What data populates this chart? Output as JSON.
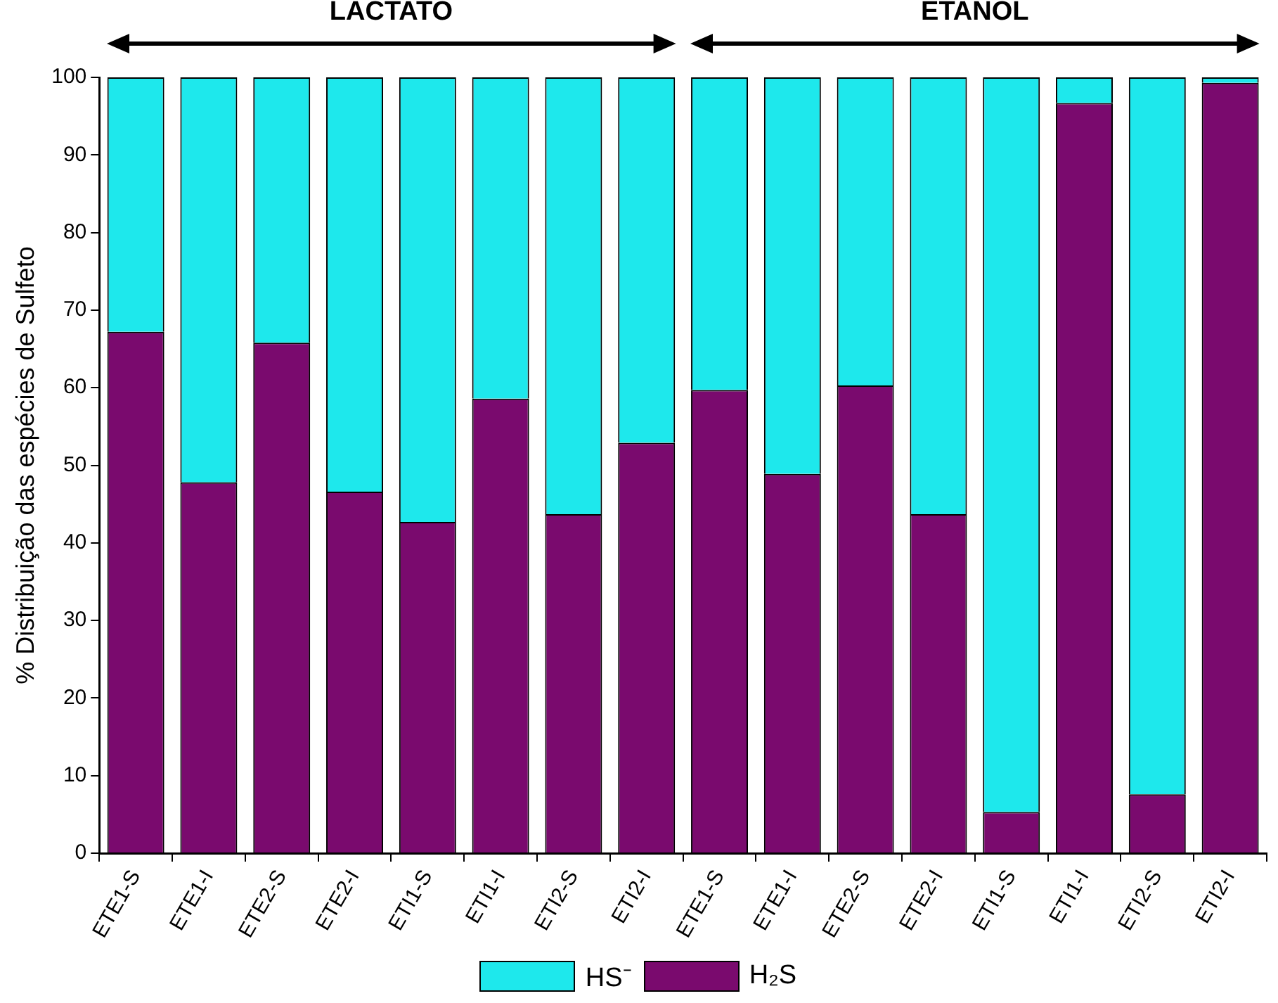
{
  "chart_data": {
    "type": "bar",
    "stacked": true,
    "ylabel": "% Distribuição das espécies de Sulfeto",
    "categories": [
      "ETE1-S",
      "ETE1-I",
      "ETE2-S",
      "ETE2-I",
      "ETI1-S",
      "ETI1-I",
      "ETI2-S",
      "ETI2-I",
      "ETE1-S",
      "ETE1-I",
      "ETE2-S",
      "ETE2-I",
      "ETI1-S",
      "ETI1-I",
      "ETI2-S",
      "ETI2-I"
    ],
    "series": [
      {
        "name": "H₂S",
        "color": "#7a0a6e",
        "values": [
          67.2,
          47.8,
          65.8,
          46.6,
          42.7,
          58.6,
          43.7,
          52.9,
          59.7,
          48.9,
          60.3,
          43.7,
          5.3,
          96.7,
          7.6,
          99.3
        ]
      },
      {
        "name": "HS⁻",
        "color": "#1ee8ec",
        "values": [
          32.8,
          52.2,
          34.2,
          53.4,
          57.3,
          41.4,
          56.3,
          47.1,
          40.3,
          51.1,
          39.7,
          56.3,
          94.7,
          3.3,
          92.4,
          0.7
        ]
      }
    ],
    "ylim": [
      0,
      100
    ],
    "yticks": [
      0,
      10,
      20,
      30,
      40,
      50,
      60,
      70,
      80,
      90,
      100
    ],
    "grid": false,
    "legend": "bottom",
    "annotations": [
      "LACTATO",
      "ETANOL"
    ]
  }
}
